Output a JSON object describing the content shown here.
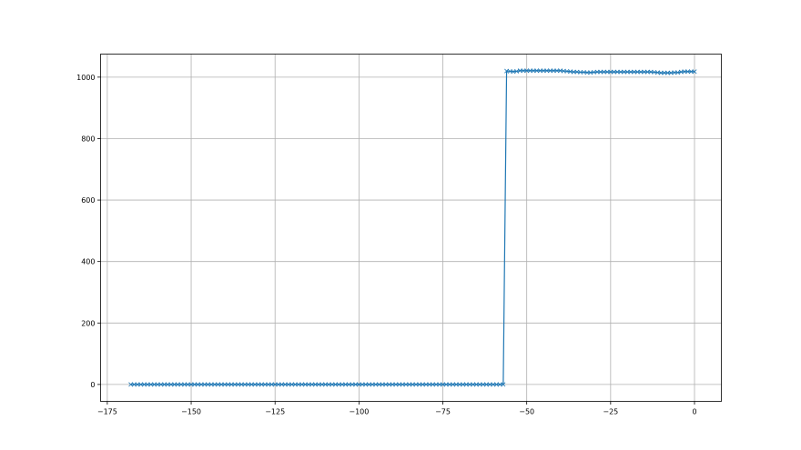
{
  "chart_data": {
    "type": "line",
    "title": "",
    "xlabel": "",
    "ylabel": "",
    "xlim": [
      -177,
      8
    ],
    "ylim": [
      -55,
      1075
    ],
    "grid": true,
    "marker": "x",
    "color": "#1f77b4",
    "xticks": [
      -175,
      -150,
      -125,
      -100,
      -75,
      -50,
      -25,
      0
    ],
    "xtick_labels": [
      "−175",
      "−150",
      "−125",
      "−100",
      "−75",
      "−50",
      "−25",
      "0"
    ],
    "yticks": [
      0,
      200,
      400,
      600,
      800,
      1000
    ],
    "ytick_labels": [
      "0",
      "200",
      "400",
      "600",
      "800",
      "1000"
    ],
    "series": [
      {
        "x": [
          -168,
          -167,
          -166,
          -165,
          -164,
          -163,
          -162,
          -161,
          -160,
          -159,
          -158,
          -157,
          -156,
          -155,
          -154,
          -153,
          -152,
          -151,
          -150,
          -149,
          -148,
          -147,
          -146,
          -145,
          -144,
          -143,
          -142,
          -141,
          -140,
          -139,
          -138,
          -137,
          -136,
          -135,
          -134,
          -133,
          -132,
          -131,
          -130,
          -129,
          -128,
          -127,
          -126,
          -125,
          -124,
          -123,
          -122,
          -121,
          -120,
          -119,
          -118,
          -117,
          -116,
          -115,
          -114,
          -113,
          -112,
          -111,
          -110,
          -109,
          -108,
          -107,
          -106,
          -105,
          -104,
          -103,
          -102,
          -101,
          -100,
          -99,
          -98,
          -97,
          -96,
          -95,
          -94,
          -93,
          -92,
          -91,
          -90,
          -89,
          -88,
          -87,
          -86,
          -85,
          -84,
          -83,
          -82,
          -81,
          -80,
          -79,
          -78,
          -77,
          -76,
          -75,
          -74,
          -73,
          -72,
          -71,
          -70,
          -69,
          -68,
          -67,
          -66,
          -65,
          -64,
          -63,
          -62,
          -61,
          -60,
          -59,
          -58,
          -57,
          -56,
          -55,
          -54,
          -53,
          -52,
          -51,
          -50,
          -49,
          -48,
          -47,
          -46,
          -45,
          -44,
          -43,
          -42,
          -41,
          -40,
          -39,
          -38,
          -37,
          -36,
          -35,
          -34,
          -33,
          -32,
          -31,
          -30,
          -29,
          -28,
          -27,
          -26,
          -25,
          -24,
          -23,
          -22,
          -21,
          -20,
          -19,
          -18,
          -17,
          -16,
          -15,
          -14,
          -13,
          -12,
          -11,
          -10,
          -9,
          -8,
          -7,
          -6,
          -5,
          -4,
          -3,
          -2,
          -1,
          0
        ],
        "y": [
          0,
          0,
          0,
          0,
          0,
          0,
          0,
          0,
          0,
          0,
          0,
          0,
          0,
          0,
          0,
          0,
          0,
          0,
          0,
          0,
          0,
          0,
          0,
          0,
          0,
          0,
          0,
          0,
          0,
          0,
          0,
          0,
          0,
          0,
          0,
          0,
          0,
          0,
          0,
          0,
          0,
          0,
          0,
          0,
          0,
          0,
          0,
          0,
          0,
          0,
          0,
          0,
          0,
          0,
          0,
          0,
          0,
          0,
          0,
          0,
          0,
          0,
          0,
          0,
          0,
          0,
          0,
          0,
          0,
          0,
          0,
          0,
          0,
          0,
          0,
          0,
          0,
          0,
          0,
          0,
          0,
          0,
          0,
          0,
          0,
          0,
          0,
          0,
          0,
          0,
          0,
          0,
          0,
          0,
          0,
          0,
          0,
          0,
          0,
          0,
          0,
          0,
          0,
          0,
          0,
          0,
          0,
          0,
          0,
          0,
          0,
          0,
          1020,
          1019,
          1018,
          1019,
          1021,
          1021,
          1021,
          1021,
          1021,
          1021,
          1021,
          1021,
          1021,
          1021,
          1021,
          1021,
          1021,
          1020,
          1019,
          1018,
          1017,
          1017,
          1016,
          1016,
          1015,
          1015,
          1016,
          1017,
          1017,
          1017,
          1017,
          1017,
          1017,
          1017,
          1017,
          1017,
          1017,
          1017,
          1017,
          1017,
          1017,
          1017,
          1017,
          1017,
          1016,
          1015,
          1014,
          1014,
          1014,
          1014,
          1015,
          1015,
          1017,
          1018,
          1018,
          1018,
          1018
        ]
      }
    ]
  }
}
